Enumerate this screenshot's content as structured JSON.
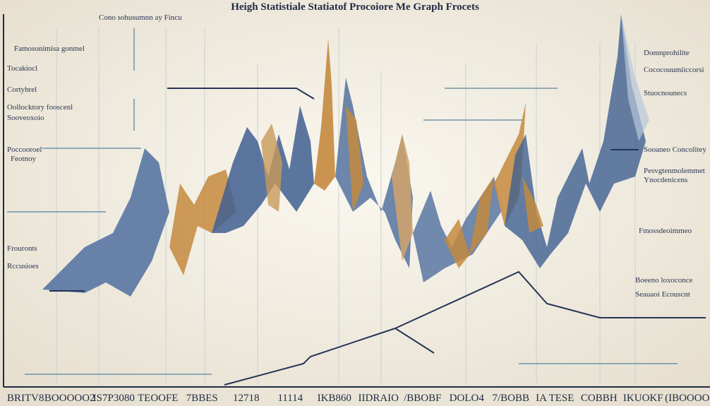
{
  "header": {
    "title": "Heigh Statistiale Statiatof Procoiore Me Graph Frocets"
  },
  "left_labels": [
    "Cono sohusumnn ay Fincu",
    "Famosonimisa gonmel",
    "Tocakiocl",
    "Cortyhrel",
    "Oollocktory fooscenl",
    "Sooveoxoio",
    "Poccooroel",
    "Feotnoy",
    "Frouronts",
    "Rccusioes"
  ],
  "right_labels": [
    "Domnprohilite",
    "Cococouumiiccorsi",
    "Stuocnounecs",
    "Sooaneo Concolitey",
    "Pesvgtenmolemmet",
    "Ynocdenicens",
    "Fmossdeoimmeo",
    "Boeeno loxoconce",
    "Seauaoi Ecouscnt"
  ],
  "x_labels": [
    "BRITV8",
    "BOOOOO2",
    "IS7P3080",
    "TEOOFE",
    "7BBES",
    "12718",
    "11114",
    "IKB860",
    "IIDRAIO",
    "/BBOBF",
    "DOLO4",
    "7/BOBB",
    "IA TESE",
    "COBBH",
    "IKUOKF",
    "(IBOOOO"
  ]
}
